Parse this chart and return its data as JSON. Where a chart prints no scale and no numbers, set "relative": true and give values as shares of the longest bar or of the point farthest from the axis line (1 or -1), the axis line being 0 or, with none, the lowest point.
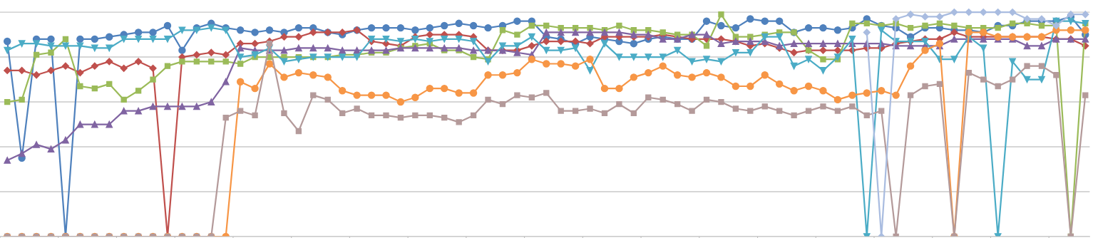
{
  "chart_data": {
    "type": "line",
    "relative": true,
    "grid": "y",
    "line_style": "solid",
    "categories": [
      null,
      null,
      null,
      null,
      null,
      null,
      null,
      null,
      null,
      null,
      null,
      null,
      null,
      null,
      null,
      null,
      null,
      null,
      null,
      null,
      null,
      null,
      null,
      null,
      null,
      null,
      null,
      null,
      null,
      null,
      null,
      null,
      null,
      null,
      null,
      null,
      null,
      null,
      null,
      null,
      null,
      null,
      null,
      null,
      null,
      null,
      null,
      null,
      null,
      null,
      null,
      null,
      null,
      null,
      null,
      null,
      null,
      null,
      null,
      null,
      null,
      null,
      null,
      null,
      null,
      null,
      null,
      null,
      null,
      null,
      null,
      null,
      null,
      null,
      null
    ],
    "series": [
      {
        "color": "#4f81bd",
        "marker": "circle",
        "values": [
          0.87,
          0.35,
          0.88,
          0.88,
          0,
          0.88,
          0.88,
          0.89,
          0.9,
          0.91,
          0.91,
          0.94,
          0.83,
          0.93,
          0.95,
          0.93,
          0.92,
          0.91,
          0.92,
          0.91,
          0.93,
          0.93,
          0.91,
          0.9,
          0.92,
          0.93,
          0.93,
          0.93,
          0.92,
          0.93,
          0.94,
          0.95,
          0.94,
          0.93,
          0.94,
          0.96,
          0.96,
          0.89,
          0.88,
          0.86,
          0.89,
          0.88,
          0.87,
          0.86,
          0.88,
          0.89,
          0.88,
          0.88,
          0.96,
          0.94,
          0.93,
          0.97,
          0.96,
          0.96,
          0.91,
          0.93,
          0.93,
          0.92,
          0.93,
          0.97,
          0.94,
          0.93,
          0.89,
          0.93,
          0.93,
          0.92,
          0.92,
          0.91,
          0.94,
          0.94,
          0.96,
          0.96,
          0.96,
          0.98,
          0.9
        ]
      },
      {
        "color": "#c0504d",
        "marker": "diamond",
        "values": [
          0.74,
          0.74,
          0.72,
          0.74,
          0.76,
          0.73,
          0.76,
          0.78,
          0.75,
          0.78,
          0.75,
          0,
          0.8,
          0.81,
          0.82,
          0.81,
          0.86,
          0.86,
          0.87,
          0.89,
          0.89,
          0.91,
          0.91,
          0.91,
          0.92,
          0.87,
          0.86,
          0.85,
          0.89,
          0.9,
          0.9,
          0.9,
          0.89,
          0.83,
          0.83,
          0.83,
          0.85,
          0.87,
          0.87,
          0.87,
          0.86,
          0.89,
          0.89,
          0.89,
          0.89,
          0.9,
          0.89,
          0.88,
          0.88,
          0.88,
          0.87,
          0.85,
          0.86,
          0.84,
          0.82,
          0.83,
          0.83,
          0.83,
          0.83,
          0.84,
          0.84,
          0.86,
          0.87,
          0.88,
          0.88,
          0.91,
          0.89,
          0.89,
          0.89,
          0.89,
          0.89,
          0.89,
          0.88,
          0.88,
          0.85
        ]
      },
      {
        "color": "#9bbb59",
        "marker": "square",
        "values": [
          0.6,
          0.61,
          0.81,
          0.82,
          0.88,
          0.67,
          0.66,
          0.68,
          0.61,
          0.65,
          0.7,
          0.76,
          0.78,
          0.78,
          0.78,
          0.78,
          0.77,
          0.8,
          0.8,
          0.8,
          0.8,
          0.8,
          0.8,
          0.81,
          0.81,
          0.82,
          0.82,
          0.84,
          0.85,
          0.86,
          0.83,
          0.83,
          0.8,
          0.79,
          0.92,
          0.9,
          0.94,
          0.94,
          0.93,
          0.93,
          0.93,
          0.92,
          0.94,
          0.92,
          0.92,
          0.91,
          0.9,
          0.9,
          0.85,
          0.99,
          0.89,
          0.89,
          0.9,
          0.91,
          0.91,
          0.83,
          0.79,
          0.79,
          0.95,
          0.95,
          0.94,
          0.95,
          0.93,
          0.94,
          0.95,
          0.94,
          0.93,
          0.93,
          0.93,
          0.95,
          0.95,
          0.94,
          0.94,
          0,
          0.95
        ]
      },
      {
        "color": "#8064a2",
        "marker": "triangle",
        "values": [
          0.34,
          0.37,
          0.41,
          0.39,
          0.43,
          0.5,
          0.5,
          0.5,
          0.56,
          0.56,
          0.58,
          0.58,
          0.58,
          0.58,
          0.6,
          0.69,
          0.84,
          0.83,
          0.83,
          0.83,
          0.84,
          0.84,
          0.84,
          0.83,
          0.83,
          0.83,
          0.83,
          0.84,
          0.84,
          0.84,
          0.84,
          0.84,
          0.83,
          0.83,
          0.83,
          0.82,
          0.81,
          0.91,
          0.91,
          0.91,
          0.91,
          0.91,
          0.91,
          0.9,
          0.9,
          0.88,
          0.88,
          0.9,
          0.9,
          0.86,
          0.87,
          0.87,
          0.87,
          0.85,
          0.86,
          0.86,
          0.86,
          0.86,
          0.86,
          0.86,
          0.86,
          0.85,
          0.85,
          0.85,
          0.85,
          0.88,
          0.88,
          0.88,
          0.88,
          0.88,
          0.85,
          0.85,
          0.88,
          0.88,
          0.88
        ]
      },
      {
        "color": "#4bacc6",
        "marker": "triangle_down",
        "values": [
          0.83,
          0.86,
          0.86,
          0.85,
          0.85,
          0.85,
          0.84,
          0.84,
          0.88,
          0.88,
          0.88,
          0.88,
          0.92,
          0.92,
          0.93,
          0.92,
          0.8,
          0.81,
          0.84,
          0.78,
          0.79,
          0.8,
          0.8,
          0.8,
          0.8,
          0.88,
          0.88,
          0.87,
          0.88,
          0.87,
          0.88,
          0.88,
          0.87,
          0.78,
          0.85,
          0.85,
          0.89,
          0.83,
          0.83,
          0.84,
          0.74,
          0.86,
          0.8,
          0.8,
          0.8,
          0.8,
          0.83,
          0.78,
          0.79,
          0.78,
          0.82,
          0.82,
          0.89,
          0.89,
          0.76,
          0.79,
          0.74,
          0.8,
          0.88,
          0,
          0.92,
          0.87,
          0.87,
          0.87,
          0.79,
          0.79,
          0.89,
          0.84,
          0,
          0.78,
          0.7,
          0.7,
          0.96,
          0.96,
          0.95
        ]
      },
      {
        "color": "#f79646",
        "marker": "circle",
        "values": [
          0,
          0,
          0,
          0,
          0,
          0,
          0,
          0,
          0,
          0,
          0,
          0,
          0,
          0,
          0,
          0,
          0.69,
          0.66,
          0.77,
          0.71,
          0.73,
          0.72,
          0.71,
          0.65,
          0.63,
          0.63,
          0.63,
          0.6,
          0.62,
          0.66,
          0.66,
          0.64,
          0.64,
          0.72,
          0.72,
          0.73,
          0.79,
          0.77,
          0.77,
          0.76,
          0.79,
          0.66,
          0.66,
          0.71,
          0.73,
          0.76,
          0.72,
          0.71,
          0.73,
          0.71,
          0.67,
          0.67,
          0.72,
          0.68,
          0.65,
          0.67,
          0.65,
          0.61,
          0.63,
          0.64,
          0.65,
          0.63,
          0.76,
          0.83,
          0.86,
          0,
          0.91,
          0.91,
          0.89,
          0.89,
          0.89,
          0.89,
          0.92,
          0.92,
          0.92
        ]
      },
      {
        "color": "#b49a9a",
        "marker": "square",
        "values": [
          0,
          0,
          0,
          0,
          0,
          0,
          0,
          0,
          0,
          0,
          0,
          0,
          0,
          0,
          0,
          0.53,
          0.56,
          0.54,
          0.86,
          0.55,
          0.47,
          0.63,
          0.61,
          0.55,
          0.57,
          0.54,
          0.54,
          0.53,
          0.54,
          0.54,
          0.53,
          0.51,
          0.54,
          0.61,
          0.59,
          0.63,
          0.62,
          0.64,
          0.56,
          0.56,
          0.57,
          0.55,
          0.59,
          0.55,
          0.62,
          0.61,
          0.59,
          0.56,
          0.61,
          0.6,
          0.57,
          0.56,
          0.58,
          0.56,
          0.54,
          0.56,
          0.58,
          0.56,
          0.58,
          0.54,
          0.56,
          0,
          0.63,
          0.67,
          0.68,
          0,
          0.73,
          0.7,
          0.67,
          0.7,
          0.76,
          0.76,
          0.72,
          0,
          0.63
        ]
      },
      {
        "color": "#a9bce0",
        "marker": "diamond",
        "values": [
          null,
          null,
          null,
          null,
          null,
          null,
          null,
          null,
          null,
          null,
          null,
          null,
          null,
          null,
          null,
          null,
          null,
          null,
          null,
          null,
          null,
          null,
          null,
          null,
          null,
          null,
          null,
          null,
          null,
          null,
          null,
          null,
          null,
          null,
          null,
          null,
          null,
          null,
          null,
          null,
          null,
          null,
          null,
          null,
          null,
          null,
          null,
          null,
          null,
          null,
          null,
          null,
          null,
          null,
          null,
          null,
          null,
          null,
          null,
          0.91,
          0,
          0.97,
          0.99,
          0.98,
          0.98,
          1,
          1,
          1,
          1,
          1,
          0.97,
          0.97,
          0.94,
          0.99,
          0.99
        ]
      }
    ]
  }
}
